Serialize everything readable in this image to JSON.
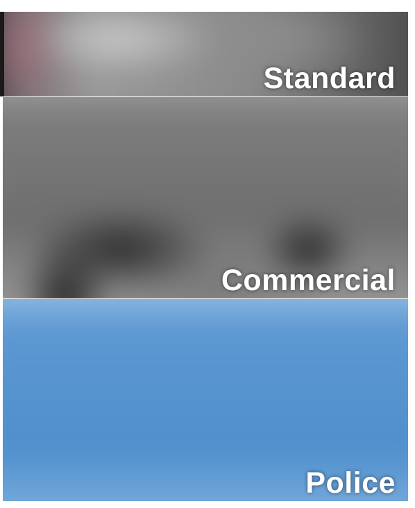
{
  "panels": [
    {
      "id": "standard",
      "label": "Standard",
      "accent": "#8a8a8a"
    },
    {
      "id": "commercial",
      "label": "Commercial",
      "accent": "#707070"
    },
    {
      "id": "police",
      "label": "Police",
      "accent": "#4f8fcd"
    }
  ]
}
